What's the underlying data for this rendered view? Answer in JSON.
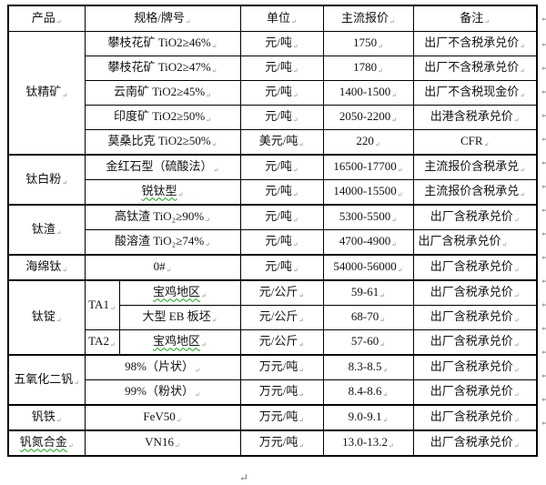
{
  "marks": {
    "cell_end": "↵",
    "line_end": "↵"
  },
  "table": {
    "headers": [
      "产品",
      "规格/牌号",
      "单位",
      "主流报价",
      "备注"
    ],
    "sections": [
      {
        "product": "钛精矿",
        "rows": [
          {
            "spec": "攀枝花矿 TiO2≥46%",
            "unit": "元/吨",
            "price": "1750",
            "note": "出厂不含税承兑价"
          },
          {
            "spec": "攀枝花矿 TiO2≥47%",
            "unit": "元/吨",
            "price": "1780",
            "note": "出厂不含税承兑价"
          },
          {
            "spec": "云南矿 TiO2≥45%",
            "unit": "元/吨",
            "price": "1400-1500",
            "note": "出厂不含税现金价"
          },
          {
            "spec": "印度矿 TiO2≥50%",
            "unit": "元/吨",
            "price": "2050-2200",
            "note": "出港含税承兑价"
          },
          {
            "spec": "莫桑比克 TiO2≥50%",
            "unit": "美元/吨",
            "price": "220",
            "note": "CFR"
          }
        ]
      },
      {
        "product": "钛白粉",
        "rows": [
          {
            "spec": "金红石型（硫酸法）",
            "unit": "元/吨",
            "price": "16500-17700",
            "note": "主流报价含税承兑"
          },
          {
            "spec": "锐钛型",
            "spec_spellcheck": true,
            "unit": "元/吨",
            "price": "14000-15500",
            "note": "主流报价含税承兑"
          }
        ]
      },
      {
        "product": "钛渣",
        "rows": [
          {
            "spec": "高钛渣 TiO₂≥90%",
            "unit": "元/吨",
            "price": "5300-5500",
            "note": "出厂含税承兑价"
          },
          {
            "spec": "酸溶渣 TiO₂≥74%",
            "unit": "元/吨",
            "price": "4700-4900",
            "note": "出厂含税承兑价",
            "note_align": "left"
          }
        ]
      },
      {
        "product": "海绵钛",
        "rows": [
          {
            "spec": "0#",
            "unit": "元/吨",
            "price": "54000-56000",
            "note": "出厂含税承兑价"
          }
        ]
      },
      {
        "product": "钛锭",
        "groups": [
          {
            "grade": "TA1",
            "rows": [
              {
                "spec": "宝鸡地区",
                "spec_spellcheck": true,
                "unit": "元/公斤",
                "price": "59-61",
                "note": "出厂含税承兑价"
              },
              {
                "spec": "大型 EB 板坯",
                "unit": "元/公斤",
                "price": "68-70",
                "note": "出厂含税承兑价"
              }
            ]
          },
          {
            "grade": "TA2",
            "rows": [
              {
                "spec": "宝鸡地区",
                "spec_spellcheck": true,
                "unit": "元/公斤",
                "price": "57-60",
                "note": "出厂含税承兑价"
              }
            ]
          }
        ]
      },
      {
        "product": "五氧化二钒",
        "rows": [
          {
            "spec": "98%（片状）",
            "unit": "万元/吨",
            "price": "8.3-8.5",
            "note": "出厂含税承兑价"
          },
          {
            "spec": "99%（粉状）",
            "unit": "万元/吨",
            "price": "8.4-8.6",
            "note": "出厂含税承兑价"
          }
        ]
      },
      {
        "product": "钒铁",
        "rows": [
          {
            "spec": "FeV50",
            "unit": "万元/吨",
            "price": "9.0-9.1",
            "note": "出厂含税承兑价"
          }
        ]
      },
      {
        "product": "钒氮合金",
        "product_spellcheck": true,
        "rows": [
          {
            "spec": "VN16",
            "unit": "万元/吨",
            "price": "13.0-13.2",
            "note": "出厂含税承兑价"
          }
        ]
      }
    ]
  }
}
